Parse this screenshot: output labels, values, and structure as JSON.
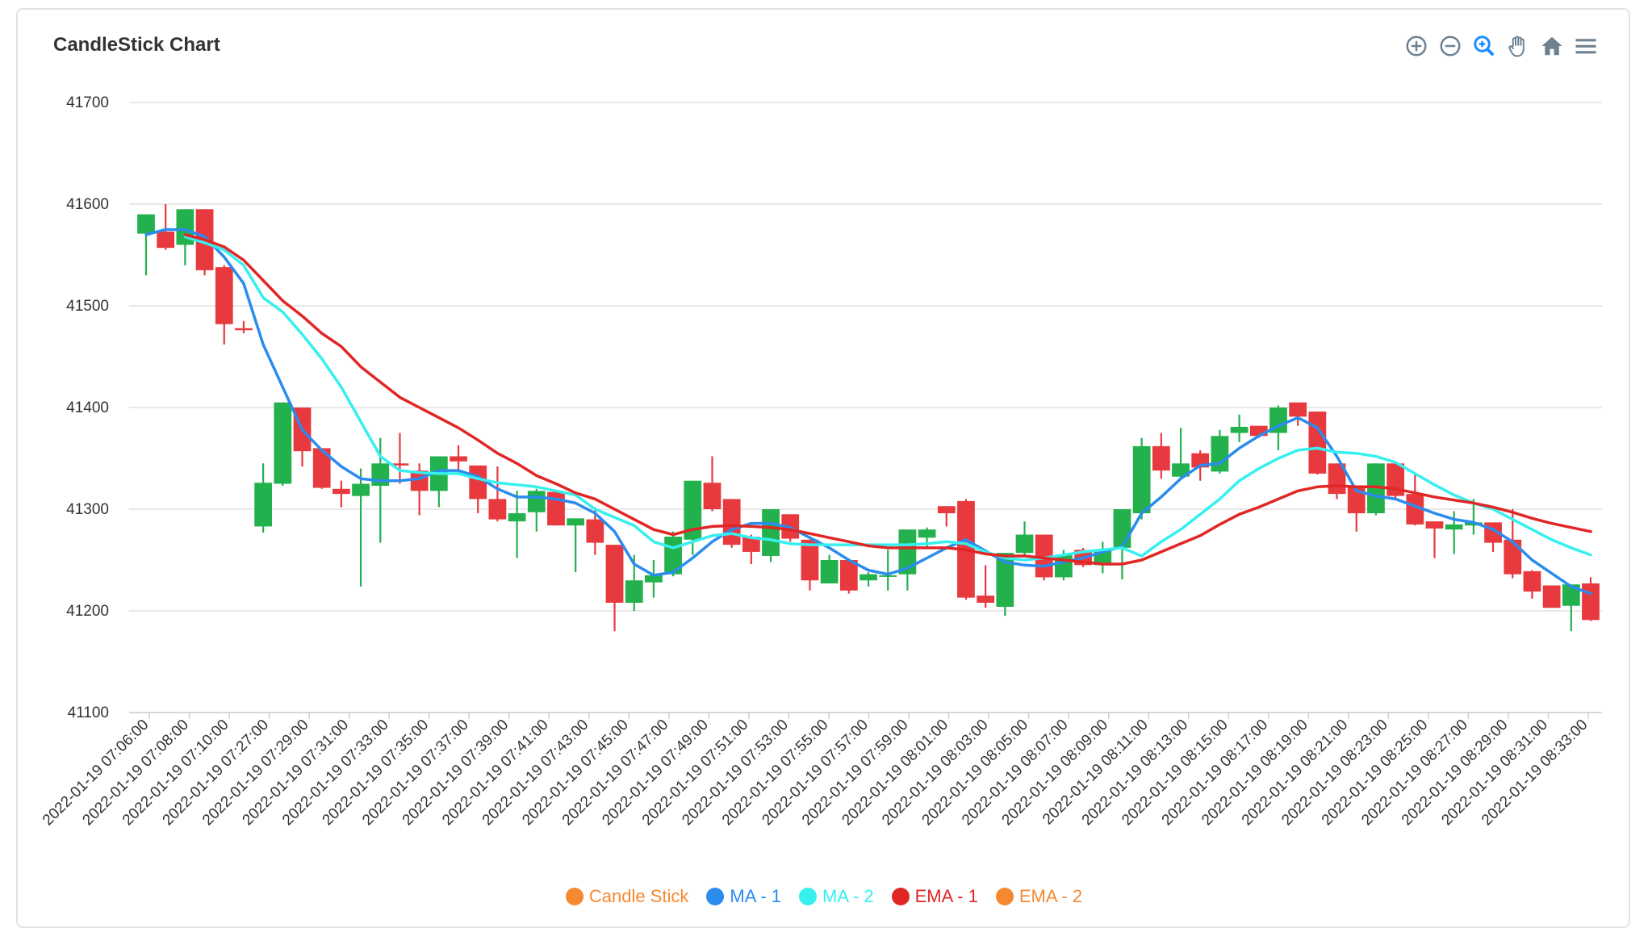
{
  "title": "CandleStick Chart",
  "toolbar": [
    {
      "name": "zoom-in-icon"
    },
    {
      "name": "zoom-out-icon"
    },
    {
      "name": "selection-zoom-icon"
    },
    {
      "name": "pan-hand-icon"
    },
    {
      "name": "reset-home-icon"
    },
    {
      "name": "menu-icon"
    }
  ],
  "colors": {
    "up": "#22b14c",
    "down": "#e8393f",
    "ma1": "#2b8ced",
    "ma2": "#36f0f0",
    "ema1": "#e12626",
    "ema2": "#f58931",
    "candle_legend": "#f58931",
    "grid": "#e0e0e0",
    "axis_text": "#333333",
    "toolbar_icon": "#6e8192",
    "toolbar_active": "#1a8cff"
  },
  "legend": [
    {
      "label": "Candle Stick",
      "color": "#f58931"
    },
    {
      "label": "MA - 1",
      "color": "#2b8ced"
    },
    {
      "label": "MA - 2",
      "color": "#36f0f0"
    },
    {
      "label": "EMA - 1",
      "color": "#e12626"
    },
    {
      "label": "EMA - 2",
      "color": "#f58931"
    }
  ],
  "chart_data": {
    "type": "candlestick",
    "title": "CandleStick Chart",
    "ylim": [
      41100,
      41700
    ],
    "yticks": [
      41100,
      41200,
      41300,
      41400,
      41500,
      41600,
      41700
    ],
    "grid": true,
    "legend_position": "bottom-center",
    "xtick_labels": [
      "2022-01-19 07:06:00",
      "2022-01-19 07:08:00",
      "2022-01-19 07:10:00",
      "2022-01-19 07:27:00",
      "2022-01-19 07:29:00",
      "2022-01-19 07:31:00",
      "2022-01-19 07:33:00",
      "2022-01-19 07:35:00",
      "2022-01-19 07:37:00",
      "2022-01-19 07:39:00",
      "2022-01-19 07:41:00",
      "2022-01-19 07:43:00",
      "2022-01-19 07:45:00",
      "2022-01-19 07:47:00",
      "2022-01-19 07:49:00",
      "2022-01-19 07:51:00",
      "2022-01-19 07:53:00",
      "2022-01-19 07:55:00",
      "2022-01-19 07:57:00",
      "2022-01-19 07:59:00",
      "2022-01-19 08:01:00",
      "2022-01-19 08:03:00",
      "2022-01-19 08:05:00",
      "2022-01-19 08:07:00",
      "2022-01-19 08:09:00",
      "2022-01-19 08:11:00",
      "2022-01-19 08:13:00",
      "2022-01-19 08:15:00",
      "2022-01-19 08:17:00",
      "2022-01-19 08:19:00",
      "2022-01-19 08:21:00",
      "2022-01-19 08:23:00",
      "2022-01-19 08:25:00",
      "2022-01-19 08:27:00",
      "2022-01-19 08:29:00",
      "2022-01-19 08:31:00",
      "2022-01-19 08:33:00"
    ],
    "candles": [
      {
        "o": 41571,
        "h": 41590,
        "l": 41530,
        "c": 41590
      },
      {
        "o": 41573,
        "h": 41600,
        "l": 41555,
        "c": 41557
      },
      {
        "o": 41560,
        "h": 41595,
        "l": 41540,
        "c": 41595
      },
      {
        "o": 41595,
        "h": 41595,
        "l": 41530,
        "c": 41535
      },
      {
        "o": 41538,
        "h": 41540,
        "l": 41462,
        "c": 41482
      },
      {
        "o": 41478,
        "h": 41485,
        "l": 41473,
        "c": 41476
      },
      {
        "o": 41283,
        "h": 41345,
        "l": 41277,
        "c": 41326
      },
      {
        "o": 41325,
        "h": 41405,
        "l": 41323,
        "c": 41405
      },
      {
        "o": 41400,
        "h": 41400,
        "l": 41342,
        "c": 41357
      },
      {
        "o": 41360,
        "h": 41360,
        "l": 41320,
        "c": 41321
      },
      {
        "o": 41320,
        "h": 41328,
        "l": 41302,
        "c": 41315
      },
      {
        "o": 41313,
        "h": 41340,
        "l": 41224,
        "c": 41325
      },
      {
        "o": 41323,
        "h": 41370,
        "l": 41267,
        "c": 41345
      },
      {
        "o": 41345,
        "h": 41375,
        "l": 41325,
        "c": 41343
      },
      {
        "o": 41338,
        "h": 41345,
        "l": 41294,
        "c": 41318
      },
      {
        "o": 41318,
        "h": 41352,
        "l": 41302,
        "c": 41352
      },
      {
        "o": 41352,
        "h": 41363,
        "l": 41335,
        "c": 41347
      },
      {
        "o": 41343,
        "h": 41343,
        "l": 41296,
        "c": 41310
      },
      {
        "o": 41310,
        "h": 41342,
        "l": 41288,
        "c": 41290
      },
      {
        "o": 41288,
        "h": 41318,
        "l": 41252,
        "c": 41296
      },
      {
        "o": 41297,
        "h": 41320,
        "l": 41278,
        "c": 41318
      },
      {
        "o": 41317,
        "h": 41317,
        "l": 41284,
        "c": 41284
      },
      {
        "o": 41284,
        "h": 41291,
        "l": 41238,
        "c": 41291
      },
      {
        "o": 41290,
        "h": 41302,
        "l": 41255,
        "c": 41267
      },
      {
        "o": 41265,
        "h": 41265,
        "l": 41180,
        "c": 41208
      },
      {
        "o": 41208,
        "h": 41255,
        "l": 41200,
        "c": 41230
      },
      {
        "o": 41228,
        "h": 41250,
        "l": 41213,
        "c": 41235
      },
      {
        "o": 41236,
        "h": 41278,
        "l": 41234,
        "c": 41273
      },
      {
        "o": 41270,
        "h": 41328,
        "l": 41255,
        "c": 41328
      },
      {
        "o": 41326,
        "h": 41352,
        "l": 41298,
        "c": 41300
      },
      {
        "o": 41310,
        "h": 41310,
        "l": 41262,
        "c": 41265
      },
      {
        "o": 41273,
        "h": 41275,
        "l": 41246,
        "c": 41258
      },
      {
        "o": 41254,
        "h": 41300,
        "l": 41248,
        "c": 41300
      },
      {
        "o": 41295,
        "h": 41295,
        "l": 41268,
        "c": 41271
      },
      {
        "o": 41270,
        "h": 41270,
        "l": 41220,
        "c": 41230
      },
      {
        "o": 41227,
        "h": 41255,
        "l": 41227,
        "c": 41250
      },
      {
        "o": 41250,
        "h": 41250,
        "l": 41217,
        "c": 41220
      },
      {
        "o": 41230,
        "h": 41238,
        "l": 41224,
        "c": 41236
      },
      {
        "o": 41234,
        "h": 41260,
        "l": 41220,
        "c": 41235
      },
      {
        "o": 41236,
        "h": 41280,
        "l": 41220,
        "c": 41280
      },
      {
        "o": 41272,
        "h": 41282,
        "l": 41262,
        "c": 41280
      },
      {
        "o": 41303,
        "h": 41303,
        "l": 41283,
        "c": 41296
      },
      {
        "o": 41308,
        "h": 41310,
        "l": 41211,
        "c": 41213
      },
      {
        "o": 41215,
        "h": 41245,
        "l": 41203,
        "c": 41208
      },
      {
        "o": 41204,
        "h": 41257,
        "l": 41195,
        "c": 41257
      },
      {
        "o": 41257,
        "h": 41288,
        "l": 41255,
        "c": 41275
      },
      {
        "o": 41275,
        "h": 41275,
        "l": 41230,
        "c": 41233
      },
      {
        "o": 41233,
        "h": 41260,
        "l": 41230,
        "c": 41255
      },
      {
        "o": 41260,
        "h": 41262,
        "l": 41243,
        "c": 41245
      },
      {
        "o": 41245,
        "h": 41268,
        "l": 41237,
        "c": 41260
      },
      {
        "o": 41262,
        "h": 41300,
        "l": 41231,
        "c": 41300
      },
      {
        "o": 41296,
        "h": 41370,
        "l": 41290,
        "c": 41362
      },
      {
        "o": 41362,
        "h": 41375,
        "l": 41330,
        "c": 41338
      },
      {
        "o": 41332,
        "h": 41380,
        "l": 41330,
        "c": 41345
      },
      {
        "o": 41355,
        "h": 41358,
        "l": 41328,
        "c": 41341
      },
      {
        "o": 41337,
        "h": 41378,
        "l": 41335,
        "c": 41372
      },
      {
        "o": 41375,
        "h": 41393,
        "l": 41366,
        "c": 41381
      },
      {
        "o": 41382,
        "h": 41382,
        "l": 41370,
        "c": 41372
      },
      {
        "o": 41375,
        "h": 41402,
        "l": 41358,
        "c": 41400
      },
      {
        "o": 41405,
        "h": 41405,
        "l": 41382,
        "c": 41391
      },
      {
        "o": 41396,
        "h": 41396,
        "l": 41334,
        "c": 41335
      },
      {
        "o": 41345,
        "h": 41345,
        "l": 41310,
        "c": 41315
      },
      {
        "o": 41322,
        "h": 41322,
        "l": 41278,
        "c": 41296
      },
      {
        "o": 41296,
        "h": 41345,
        "l": 41294,
        "c": 41345
      },
      {
        "o": 41345,
        "h": 41345,
        "l": 41310,
        "c": 41313
      },
      {
        "o": 41315,
        "h": 41335,
        "l": 41284,
        "c": 41285
      },
      {
        "o": 41288,
        "h": 41288,
        "l": 41252,
        "c": 41281
      },
      {
        "o": 41280,
        "h": 41298,
        "l": 41256,
        "c": 41285
      },
      {
        "o": 41284,
        "h": 41310,
        "l": 41275,
        "c": 41287
      },
      {
        "o": 41287,
        "h": 41287,
        "l": 41258,
        "c": 41267
      },
      {
        "o": 41270,
        "h": 41300,
        "l": 41232,
        "c": 41236
      },
      {
        "o": 41239,
        "h": 41240,
        "l": 41212,
        "c": 41219
      },
      {
        "o": 41225,
        "h": 41225,
        "l": 41203,
        "c": 41203
      },
      {
        "o": 41205,
        "h": 41226,
        "l": 41180,
        "c": 41226
      },
      {
        "o": 41227,
        "h": 41233,
        "l": 41190,
        "c": 41191
      }
    ],
    "series": [
      {
        "name": "MA - 1",
        "values": [
          41570,
          41575,
          41575,
          41568,
          41548,
          41522,
          41462,
          41420,
          41378,
          41358,
          41342,
          41330,
          41328,
          41328,
          41330,
          41338,
          41338,
          41332,
          41320,
          41312,
          41312,
          41310,
          41306,
          41296,
          41278,
          41246,
          41235,
          41238,
          41252,
          41268,
          41280,
          41286,
          41286,
          41282,
          41272,
          41262,
          41250,
          41240,
          41236,
          41242,
          41252,
          41262,
          41270,
          41259,
          41248,
          41245,
          41244,
          41248,
          41252,
          41258,
          41263,
          41296,
          41312,
          41330,
          41343,
          41345,
          41360,
          41372,
          41382,
          41390,
          41380,
          41352,
          41318,
          41313,
          41310,
          41303,
          41296,
          41290,
          41287,
          41280,
          41268,
          41250,
          41237,
          41224,
          41217
        ]
      },
      {
        "name": "MA - 2",
        "values": [
          null,
          null,
          41568,
          41562,
          41555,
          41540,
          41508,
          41494,
          41472,
          41448,
          41420,
          41386,
          41352,
          41338,
          41336,
          41335,
          41335,
          41330,
          41326,
          41324,
          41322,
          41318,
          41314,
          41300,
          41292,
          41284,
          41268,
          41262,
          41268,
          41274,
          41276,
          41272,
          41270,
          41266,
          41265,
          41265,
          41265,
          41265,
          41265,
          41265,
          41266,
          41268,
          41266,
          41258,
          41252,
          41250,
          41252,
          41255,
          41258,
          41260,
          41262,
          41254,
          41268,
          41280,
          41295,
          41310,
          41328,
          41340,
          41350,
          41358,
          41360,
          41356,
          41355,
          41352,
          41346,
          41335,
          41324,
          41314,
          41306,
          41300,
          41290,
          41280,
          41270,
          41262,
          41255
        ]
      },
      {
        "name": "EMA - 1",
        "values": [
          null,
          null,
          41570,
          41565,
          41558,
          41545,
          41525,
          41505,
          41490,
          41473,
          41460,
          41440,
          41425,
          41410,
          41400,
          41390,
          41380,
          41368,
          41355,
          41345,
          41333,
          41325,
          41316,
          41310,
          41300,
          41290,
          41280,
          41275,
          41280,
          41283,
          41284,
          41283,
          41282,
          41280,
          41276,
          41272,
          41268,
          41264,
          41262,
          41262,
          41262,
          41262,
          41260,
          41256,
          41254,
          41254,
          41252,
          41250,
          41248,
          41246,
          41246,
          41250,
          41258,
          41266,
          41274,
          41285,
          41295,
          41302,
          41310,
          41318,
          41322,
          41323,
          41322,
          41322,
          41320,
          41316,
          41312,
          41309,
          41306,
          41302,
          41297,
          41291,
          41286,
          41282,
          41278
        ]
      },
      {
        "name": "EMA - 2",
        "values": []
      }
    ]
  }
}
